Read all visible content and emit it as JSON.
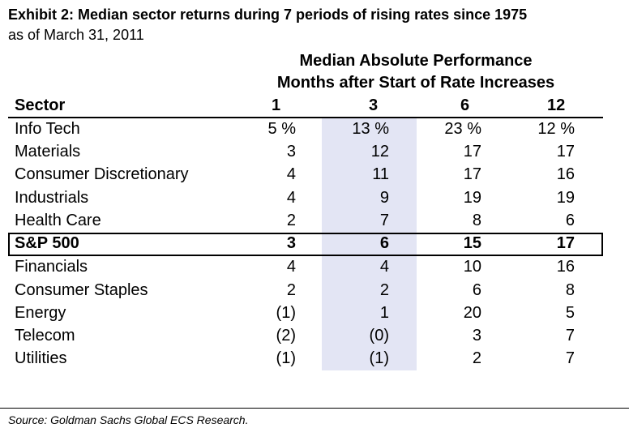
{
  "exhibit": {
    "title": "Exhibit 2: Median sector returns during 7 periods of rising rates since 1975",
    "subtitle": "as of March 31, 2011",
    "group_header_line1": "Median Absolute Performance",
    "group_header_line2": "Months after Start of Rate Increases"
  },
  "table": {
    "columns": [
      "Sector",
      "1",
      "3",
      "6",
      "12"
    ],
    "rows": [
      {
        "sector": "Info Tech",
        "m1": "5 %",
        "m3": "13 %",
        "m6": "23 %",
        "m12": "12 %"
      },
      {
        "sector": "Materials",
        "m1": "3",
        "m3": "12",
        "m6": "17",
        "m12": "17"
      },
      {
        "sector": "Consumer Discretionary",
        "m1": "4",
        "m3": "11",
        "m6": "17",
        "m12": "16"
      },
      {
        "sector": "Industrials",
        "m1": "4",
        "m3": "9",
        "m6": "19",
        "m12": "19"
      },
      {
        "sector": "Health Care",
        "m1": "2",
        "m3": "7",
        "m6": "8",
        "m12": "6"
      },
      {
        "sector": "S&P 500",
        "m1": "3",
        "m3": "6",
        "m6": "15",
        "m12": "17"
      },
      {
        "sector": "Financials",
        "m1": "4",
        "m3": "4",
        "m6": "10",
        "m12": "16"
      },
      {
        "sector": "Consumer Staples",
        "m1": "2",
        "m3": "2",
        "m6": "6",
        "m12": "8"
      },
      {
        "sector": "Energy",
        "m1": "(1)",
        "m3": "1",
        "m6": "20",
        "m12": "5"
      },
      {
        "sector": "Telecom",
        "m1": "(2)",
        "m3": "(0)",
        "m6": "3",
        "m12": "7"
      },
      {
        "sector": "Utilities",
        "m1": "(1)",
        "m3": "(1)",
        "m6": "2",
        "m12": "7"
      }
    ],
    "highlight_color": "#e3e5f4"
  },
  "footer": {
    "source": "Source: Goldman Sachs Global ECS Research."
  }
}
